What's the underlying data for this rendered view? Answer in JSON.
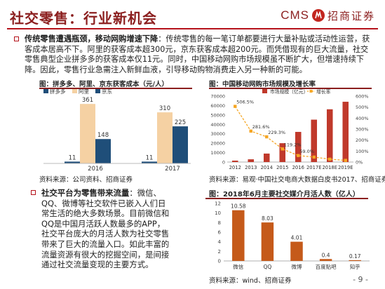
{
  "slide": {
    "title": "社交零售：行业新机会",
    "logo_text": "CMS",
    "logo_cn": "招商证券",
    "page_number": "- 9 -"
  },
  "bullet1": {
    "lead": "传统零售遭遇瓶颈，移动网购增速下降",
    "text": "：传统零售的每一笔订单都要进行大量补贴或活动性运营，获客成本居高不下。阿里的获客成本超300元，京东获客成本超200元。而凭借现有的巨大流量，社交零售典型企业拼多多的获客成本仅11元。同时，中国移动网购市场规模虽不断扩大，但增速持续下降。因此，零售行业急需注入新鲜血液，引导移动购物消费走入另一种新的可能。"
  },
  "bullet2": {
    "lead": "社交平台为零售带来流量",
    "text": "：微信、QQ、微博等社交软件已嵌入人们日常生活的绝大多数场景。目前微信和QQ是中国月活跃人数最多的APP，社交平台庞大的月活人数为社交零售带来了巨大的流量入口。如此丰富的流量资源有很大的挖掘空间，是间接通过社交流量变现的主要方式。"
  },
  "chart1": {
    "title": "图：拼多多、阿里、京东获客成本（元/人）",
    "source": "资料来源：公司资料、招商证券"
  },
  "chart2": {
    "title": "图：中国移动网购市场规模及增长率",
    "source": "资料来源：易观·中国社交电商大数据白皮书2017、招商证券"
  },
  "chart3": {
    "title": "图：2018年6月主要社交媒介月活人数（亿人）",
    "source": "资料来源：wind、招商证券"
  },
  "chart_data": [
    {
      "type": "bar",
      "title": "拼多多、阿里、京东获客成本（元/人）",
      "categories": [
        "2016",
        "2017"
      ],
      "series": [
        {
          "name": "拼多多",
          "values": [
            11,
            11
          ],
          "color": "#1f4e79"
        },
        {
          "name": "阿里",
          "values": [
            361,
            310
          ],
          "color": "#f5d1a3"
        },
        {
          "name": "京东",
          "values": [
            148,
            225
          ],
          "color": "#1f4e79"
        }
      ],
      "legend_position": "top-left",
      "ylim": [
        0,
        400
      ]
    },
    {
      "type": "bar",
      "title": "中国移动网购市场规模及增长率",
      "categories": [
        "2012",
        "2013",
        "2014",
        "2015",
        "2016",
        "2017E",
        "2018E",
        "2019E"
      ],
      "series": [
        {
          "name": "市场规模（亿元）",
          "values": [
            1500,
            2900,
            9000,
            20000,
            32000,
            45000,
            56000,
            64000
          ],
          "color": "#c0392b"
        },
        {
          "name": "增长率",
          "values": [
            506.5,
            281.6,
            229.3,
            119.2,
            59.0,
            45.0,
            26.0,
            15.0
          ],
          "color": "#f5a623"
        }
      ],
      "data_labels": [
        "506.5%",
        "281.6%",
        "229.3%",
        "119.2%",
        "59.0%",
        "",
        "",
        ""
      ],
      "y_left_ticks": [
        "0",
        "10000",
        "20000",
        "30000",
        "40000",
        "50000",
        "60000",
        "70000"
      ],
      "y_right_ticks": [
        "0%",
        "100%",
        "200%",
        "300%",
        "400%",
        "500%",
        "600%"
      ],
      "ylim": [
        0,
        70000
      ],
      "y2lim": [
        0,
        600
      ],
      "legend_position": "top"
    },
    {
      "type": "bar",
      "title": "2018年6月主要社交媒介月活人数（亿人）",
      "categories": [
        "微信",
        "QQ",
        "微博",
        "百度贴吧",
        "知乎"
      ],
      "values": [
        10.58,
        8.03,
        4.01,
        0.4,
        0.17
      ],
      "color": "#c55a1a",
      "y_ticks": [
        "0",
        "2",
        "4",
        "6",
        "8",
        "10",
        "12"
      ],
      "ylim": [
        0,
        12
      ]
    }
  ]
}
